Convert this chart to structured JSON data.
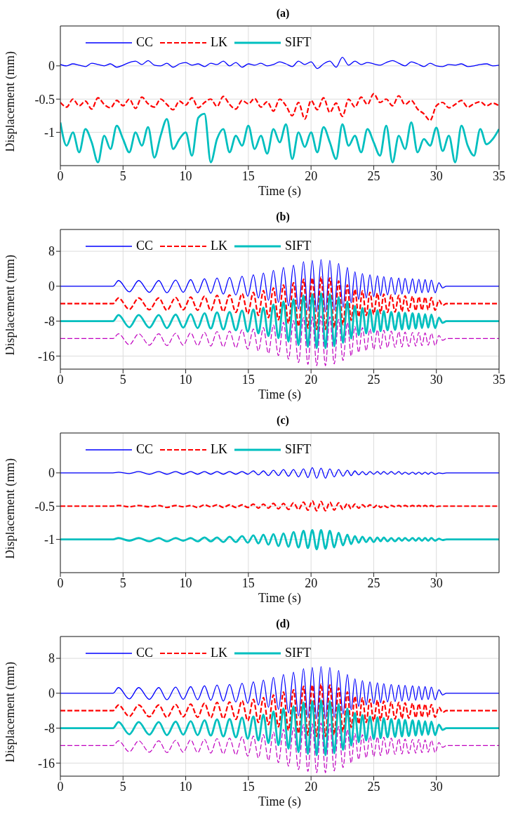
{
  "chart_data": [
    {
      "type": "line",
      "title": "(a)",
      "xlabel": "Time (s)",
      "ylabel": "Displacement (mm)",
      "xlim": [
        0,
        35
      ],
      "xticks": [
        0,
        5,
        10,
        15,
        20,
        25,
        30,
        35
      ],
      "ylim": [
        -1.5,
        0.6
      ],
      "yticks": [
        -1,
        -0.5,
        0
      ],
      "grid": true,
      "legend": "top",
      "x": [
        0,
        0.5,
        1,
        1.5,
        2,
        2.5,
        3,
        3.5,
        4,
        4.5,
        5,
        5.5,
        6,
        6.5,
        7,
        7.5,
        8,
        8.5,
        9,
        9.5,
        10,
        10.5,
        11,
        11.5,
        12,
        12.5,
        13,
        13.5,
        14,
        14.5,
        15,
        15.5,
        16,
        16.5,
        17,
        17.5,
        18,
        18.5,
        19,
        19.5,
        20,
        20.5,
        21,
        21.5,
        22,
        22.5,
        23,
        23.5,
        24,
        24.5,
        25,
        25.5,
        26,
        26.5,
        27,
        27.5,
        28,
        28.5,
        29,
        29.5,
        30,
        30.5,
        31,
        31.5,
        32,
        32.5,
        33,
        33.5,
        34,
        34.5,
        35
      ],
      "series": [
        {
          "name": "CC",
          "color": "#0000ff",
          "line_style": "solid",
          "values": [
            0.02,
            0.0,
            0.03,
            0.01,
            -0.01,
            0.04,
            0.02,
            0.0,
            0.03,
            -0.02,
            0.01,
            0.05,
            0.07,
            0.02,
            0.08,
            0.01,
            0.0,
            0.04,
            -0.02,
            0.03,
            0.05,
            0.01,
            0.03,
            -0.01,
            0.04,
            0.02,
            0.07,
            0.0,
            0.05,
            -0.02,
            0.03,
            0.01,
            0.04,
            0.0,
            0.02,
            0.06,
            0.03,
            -0.01,
            0.07,
            0.02,
            0.06,
            -0.04,
            0.03,
            0.07,
            -0.02,
            0.13,
            0.01,
            0.07,
            0.02,
            0.05,
            0.03,
            0.01,
            0.05,
            0.08,
            0.04,
            0.0,
            0.06,
            0.03,
            -0.01,
            0.04,
            0.0,
            -0.01,
            0.02,
            0.01,
            0.03,
            -0.01,
            0.0,
            0.02,
            0.03,
            0.0,
            0.01
          ]
        },
        {
          "name": "LK",
          "color": "#ff0000",
          "line_style": "dashed",
          "values": [
            -0.55,
            -0.62,
            -0.5,
            -0.6,
            -0.53,
            -0.65,
            -0.48,
            -0.58,
            -0.63,
            -0.52,
            -0.6,
            -0.5,
            -0.64,
            -0.47,
            -0.57,
            -0.62,
            -0.5,
            -0.58,
            -0.66,
            -0.53,
            -0.59,
            -0.48,
            -0.63,
            -0.55,
            -0.5,
            -0.61,
            -0.46,
            -0.58,
            -0.65,
            -0.52,
            -0.57,
            -0.49,
            -0.62,
            -0.54,
            -0.68,
            -0.5,
            -0.6,
            -0.75,
            -0.55,
            -0.8,
            -0.52,
            -0.66,
            -0.48,
            -0.7,
            -0.56,
            -0.76,
            -0.5,
            -0.62,
            -0.47,
            -0.58,
            -0.42,
            -0.55,
            -0.5,
            -0.6,
            -0.45,
            -0.58,
            -0.52,
            -0.65,
            -0.72,
            -0.82,
            -0.6,
            -0.55,
            -0.63,
            -0.58,
            -0.52,
            -0.62,
            -0.57,
            -0.54,
            -0.6,
            -0.56,
            -0.6
          ]
        },
        {
          "name": "SIFT",
          "color": "#00bfbf",
          "line_style": "solid",
          "values": [
            -0.85,
            -1.2,
            -1.0,
            -1.3,
            -0.95,
            -1.15,
            -1.45,
            -1.05,
            -1.25,
            -0.9,
            -1.1,
            -1.3,
            -1.0,
            -1.2,
            -0.92,
            -1.38,
            -1.05,
            -0.8,
            -1.25,
            -1.1,
            -1.0,
            -1.35,
            -0.78,
            -0.72,
            -1.45,
            -1.1,
            -0.95,
            -1.3,
            -1.05,
            -1.2,
            -0.9,
            -1.25,
            -1.05,
            -1.32,
            -0.95,
            -1.15,
            -0.88,
            -1.4,
            -1.0,
            -1.22,
            -1.0,
            -1.3,
            -0.92,
            -1.15,
            -1.4,
            -0.88,
            -1.2,
            -1.05,
            -1.3,
            -0.95,
            -1.15,
            -1.35,
            -0.9,
            -1.45,
            -1.05,
            -1.25,
            -0.85,
            -1.3,
            -1.1,
            -1.2,
            -0.93,
            -1.28,
            -1.05,
            -1.45,
            -0.9,
            -1.2,
            -1.35,
            -0.95,
            -1.18,
            -1.1,
            -0.95
          ]
        }
      ]
    },
    {
      "type": "line",
      "title": "(b)",
      "xlabel": "Time (s)",
      "ylabel": "Displacement (mm)",
      "xlim": [
        0,
        35
      ],
      "xticks": [
        0,
        5,
        10,
        15,
        20,
        25,
        30,
        35
      ],
      "ylim": [
        -19,
        13
      ],
      "yticks": [
        -16,
        -8,
        0,
        8
      ],
      "grid": true,
      "legend": "top",
      "x": [
        0,
        4.2,
        4.64,
        5.5,
        6.25,
        7.1,
        7.85,
        8.5,
        9.2,
        9.8,
        10.4,
        10.95,
        11.5,
        12.0,
        12.5,
        13.0,
        13.5,
        14.0,
        14.5,
        14.95,
        15.4,
        15.8,
        16.2,
        16.6,
        17.0,
        17.4,
        17.8,
        18.2,
        18.6,
        19.0,
        19.4,
        19.75,
        20.1,
        20.45,
        20.8,
        21.15,
        21.5,
        21.85,
        22.2,
        22.55,
        22.9,
        23.2,
        23.5,
        23.8,
        24.1,
        24.4,
        24.7,
        25.0,
        25.3,
        25.55,
        25.8,
        26.1,
        26.4,
        26.7,
        27.0,
        27.25,
        27.5,
        27.8,
        28.1,
        28.35,
        28.6,
        28.85,
        29.1,
        29.35,
        29.6,
        29.9,
        30.2,
        30.5,
        30.8,
        35
      ],
      "series": [
        {
          "name": "CC",
          "color": "#0000ff",
          "line_style": "solid",
          "values": [
            0,
            0,
            1.3,
            -1.3,
            1.3,
            -1.4,
            1.3,
            -1.5,
            1.4,
            -1.4,
            1.5,
            -1.5,
            1.7,
            -1.6,
            1.9,
            -1.8,
            2.0,
            -2.0,
            2.3,
            -2.3,
            2.6,
            -2.7,
            3.0,
            -3.2,
            3.6,
            -3.7,
            4.3,
            -4.5,
            4.8,
            -5.2,
            5.6,
            -5.6,
            5.9,
            -5.9,
            6.1,
            -5.9,
            5.9,
            -5.5,
            5.2,
            -4.8,
            4.3,
            -3.8,
            3.3,
            -3.0,
            2.9,
            -2.7,
            2.6,
            -2.4,
            2.4,
            -2.2,
            2.2,
            -2.0,
            2.0,
            -1.9,
            1.9,
            -1.8,
            1.8,
            -1.7,
            1.7,
            -1.6,
            1.6,
            -1.5,
            1.5,
            -1.4,
            1.4,
            -1.5,
            0.8,
            -0.4,
            0,
            0
          ]
        },
        {
          "name": "LK",
          "color": "#ff0000",
          "line_style": "dashed",
          "values": [
            -4,
            -4,
            -2.7,
            -5.3,
            -2.7,
            -5.4,
            -2.7,
            -5.5,
            -2.6,
            -5.4,
            -2.5,
            -5.5,
            -2.3,
            -5.6,
            -2.1,
            -5.8,
            -2.0,
            -6.0,
            -1.7,
            -6.3,
            -1.4,
            -6.7,
            -1.0,
            -7.2,
            -0.4,
            -7.7,
            0.3,
            -8.5,
            0.8,
            -9.2,
            1.6,
            -9.6,
            1.9,
            -9.9,
            2.1,
            -9.9,
            1.9,
            -9.5,
            1.2,
            -8.8,
            0.3,
            -7.8,
            -0.7,
            -7.0,
            -1.1,
            -6.7,
            -1.4,
            -6.4,
            -1.6,
            -6.2,
            -1.8,
            -6.0,
            -2.0,
            -5.9,
            -2.1,
            -5.8,
            -2.2,
            -5.7,
            -2.3,
            -5.6,
            -2.4,
            -5.5,
            -2.5,
            -5.4,
            -2.6,
            -5.5,
            -3.2,
            -4.4,
            -4,
            -4
          ]
        },
        {
          "name": "SIFT",
          "color": "#00bfbf",
          "line_style": "solid",
          "values": [
            -8,
            -8,
            -6.6,
            -9.4,
            -6.6,
            -9.5,
            -6.6,
            -9.6,
            -6.5,
            -9.5,
            -6.4,
            -9.6,
            -6.2,
            -9.7,
            -6.0,
            -9.9,
            -5.9,
            -10.1,
            -5.6,
            -10.4,
            -5.3,
            -10.8,
            -4.9,
            -11.4,
            -4.2,
            -11.9,
            -3.5,
            -12.7,
            -3.0,
            -13.5,
            -2.1,
            -13.9,
            -1.8,
            -14.2,
            -1.6,
            -14.2,
            -1.8,
            -13.8,
            -2.5,
            -13.0,
            -3.5,
            -12.0,
            -4.5,
            -11.2,
            -5.0,
            -10.8,
            -5.3,
            -10.5,
            -5.5,
            -10.3,
            -5.7,
            -10.1,
            -5.9,
            -10.0,
            -6.0,
            -9.9,
            -6.1,
            -9.8,
            -6.2,
            -9.7,
            -6.3,
            -9.6,
            -6.4,
            -9.5,
            -6.5,
            -9.6,
            -7.2,
            -8.4,
            -8,
            -8
          ]
        },
        {
          "color": "#bf00bf",
          "line_style": "dashed",
          "values": [
            -12,
            -12,
            -10.9,
            -13.4,
            -10.9,
            -13.5,
            -10.9,
            -13.6,
            -10.8,
            -13.5,
            -10.7,
            -13.6,
            -10.6,
            -13.7,
            -10.4,
            -13.9,
            -10.3,
            -14.1,
            -10.0,
            -14.4,
            -9.8,
            -14.8,
            -9.5,
            -15.4,
            -8.9,
            -15.9,
            -8.3,
            -16.7,
            -7.9,
            -17.5,
            -7.2,
            -17.9,
            -7.0,
            -18.2,
            -6.8,
            -18.2,
            -7.0,
            -17.8,
            -7.6,
            -17.0,
            -8.3,
            -16.0,
            -9.2,
            -15.2,
            -9.5,
            -14.8,
            -9.8,
            -14.5,
            -10.0,
            -14.3,
            -10.1,
            -14.1,
            -10.3,
            -14.0,
            -10.4,
            -13.9,
            -10.5,
            -13.8,
            -10.6,
            -13.7,
            -10.6,
            -13.6,
            -10.7,
            -13.5,
            -10.8,
            -13.6,
            -11.3,
            -12.4,
            -12,
            -12
          ]
        }
      ]
    },
    {
      "type": "line",
      "title": "(c)",
      "xlabel": "Time (s)",
      "ylabel": "Displacement (mm)",
      "xlim": [
        0,
        35
      ],
      "xticks": [
        0,
        5,
        10,
        15,
        20,
        25,
        30
      ],
      "ylim": [
        -1.5,
        0.6
      ],
      "yticks": [
        -1,
        -0.5,
        0
      ],
      "grid": true,
      "legend": "top",
      "x": [
        0,
        4.2,
        4.64,
        5.5,
        6.25,
        7.1,
        7.85,
        8.5,
        9.2,
        9.8,
        10.4,
        10.95,
        11.5,
        12.0,
        12.5,
        13.0,
        13.5,
        14.0,
        14.5,
        14.95,
        15.4,
        15.8,
        16.2,
        16.6,
        17.0,
        17.4,
        17.8,
        18.2,
        18.6,
        19.0,
        19.4,
        19.75,
        20.1,
        20.45,
        20.8,
        21.15,
        21.5,
        21.85,
        22.2,
        22.55,
        22.9,
        23.2,
        23.5,
        23.8,
        24.1,
        24.4,
        24.7,
        25.0,
        25.3,
        25.55,
        25.8,
        26.1,
        26.4,
        26.7,
        27.0,
        27.25,
        27.5,
        27.8,
        28.1,
        28.35,
        28.6,
        28.85,
        29.1,
        29.35,
        29.6,
        29.9,
        30.2,
        30.5,
        30.8,
        35
      ],
      "series": [
        {
          "name": "CC",
          "color": "#0000ff",
          "line_style": "solid",
          "values": [
            0,
            0,
            0.01,
            -0.01,
            0.02,
            -0.02,
            0.02,
            -0.02,
            0.02,
            -0.02,
            0.02,
            -0.02,
            0.02,
            -0.02,
            0.02,
            -0.02,
            0.02,
            -0.02,
            0.02,
            -0.02,
            0.03,
            -0.03,
            0.03,
            -0.04,
            0.04,
            -0.04,
            0.05,
            -0.05,
            0.05,
            -0.06,
            0.06,
            -0.07,
            0.08,
            -0.08,
            0.07,
            -0.08,
            0.06,
            -0.06,
            0.05,
            -0.05,
            0.04,
            -0.04,
            0.03,
            -0.03,
            0.02,
            -0.03,
            0.02,
            -0.02,
            0.02,
            -0.02,
            0.02,
            -0.02,
            0.02,
            -0.02,
            0.02,
            -0.02,
            0.01,
            -0.02,
            0.01,
            -0.02,
            0.01,
            -0.02,
            0.01,
            -0.02,
            0.01,
            -0.02,
            0.0,
            -0.01,
            0,
            0
          ]
        },
        {
          "name": "LK",
          "color": "#ff0000",
          "line_style": "dashed",
          "values": [
            -0.5,
            -0.5,
            -0.49,
            -0.51,
            -0.49,
            -0.51,
            -0.49,
            -0.52,
            -0.49,
            -0.51,
            -0.49,
            -0.52,
            -0.48,
            -0.51,
            -0.48,
            -0.52,
            -0.48,
            -0.52,
            -0.48,
            -0.52,
            -0.47,
            -0.53,
            -0.47,
            -0.53,
            -0.46,
            -0.54,
            -0.46,
            -0.55,
            -0.45,
            -0.55,
            -0.44,
            -0.56,
            -0.42,
            -0.57,
            -0.43,
            -0.57,
            -0.44,
            -0.56,
            -0.45,
            -0.55,
            -0.46,
            -0.54,
            -0.47,
            -0.53,
            -0.48,
            -0.52,
            -0.48,
            -0.52,
            -0.48,
            -0.52,
            -0.49,
            -0.52,
            -0.49,
            -0.51,
            -0.49,
            -0.51,
            -0.49,
            -0.51,
            -0.49,
            -0.51,
            -0.49,
            -0.51,
            -0.49,
            -0.51,
            -0.49,
            -0.51,
            -0.5,
            -0.5,
            -0.5,
            -0.5
          ]
        },
        {
          "name": "SIFT",
          "color": "#00bfbf",
          "line_style": "solid",
          "values": [
            -1,
            -1,
            -0.98,
            -1.02,
            -0.98,
            -1.03,
            -0.98,
            -1.03,
            -0.98,
            -1.02,
            -0.98,
            -1.03,
            -0.97,
            -1.03,
            -0.97,
            -1.04,
            -0.96,
            -1.04,
            -0.95,
            -1.05,
            -0.94,
            -1.06,
            -0.93,
            -1.08,
            -0.92,
            -1.1,
            -0.91,
            -1.11,
            -0.89,
            -1.12,
            -0.87,
            -1.13,
            -0.86,
            -1.15,
            -0.86,
            -1.14,
            -0.87,
            -1.12,
            -0.9,
            -1.09,
            -0.93,
            -1.07,
            -0.95,
            -1.05,
            -0.96,
            -1.04,
            -0.97,
            -1.04,
            -0.97,
            -1.03,
            -0.97,
            -1.03,
            -0.98,
            -1.03,
            -0.98,
            -1.02,
            -0.98,
            -1.02,
            -0.98,
            -1.02,
            -0.98,
            -1.02,
            -0.98,
            -1.02,
            -0.98,
            -1.02,
            -0.99,
            -1.01,
            -1,
            -1
          ]
        }
      ]
    },
    {
      "type": "line",
      "title": "(d)",
      "xlabel": "Time (s)",
      "ylabel": "Displacement (mm)",
      "xlim": [
        0,
        35
      ],
      "xticks": [
        0,
        5,
        10,
        15,
        20,
        25,
        30
      ],
      "ylim": [
        -19,
        13
      ],
      "yticks": [
        -16,
        -8,
        0,
        8
      ],
      "grid": true,
      "legend": "top",
      "x": [
        0,
        4.2,
        4.64,
        5.5,
        6.25,
        7.1,
        7.85,
        8.5,
        9.2,
        9.8,
        10.4,
        10.95,
        11.5,
        12.0,
        12.5,
        13.0,
        13.5,
        14.0,
        14.5,
        14.95,
        15.4,
        15.8,
        16.2,
        16.6,
        17.0,
        17.4,
        17.8,
        18.2,
        18.6,
        19.0,
        19.4,
        19.75,
        20.1,
        20.45,
        20.8,
        21.15,
        21.5,
        21.85,
        22.2,
        22.55,
        22.9,
        23.2,
        23.5,
        23.8,
        24.1,
        24.4,
        24.7,
        25.0,
        25.3,
        25.55,
        25.8,
        26.1,
        26.4,
        26.7,
        27.0,
        27.25,
        27.5,
        27.8,
        28.1,
        28.35,
        28.6,
        28.85,
        29.1,
        29.35,
        29.6,
        29.9,
        30.2,
        30.5,
        30.8,
        35
      ],
      "series": [
        {
          "name": "CC",
          "color": "#0000ff",
          "line_style": "solid",
          "values": [
            0,
            0,
            1.3,
            -1.3,
            1.3,
            -1.4,
            1.3,
            -1.5,
            1.4,
            -1.4,
            1.5,
            -1.5,
            1.7,
            -1.6,
            1.9,
            -1.8,
            2.0,
            -2.0,
            2.3,
            -2.3,
            2.6,
            -2.7,
            3.0,
            -3.2,
            3.6,
            -3.7,
            4.3,
            -4.5,
            4.8,
            -5.2,
            5.6,
            -5.6,
            5.9,
            -5.9,
            6.1,
            -5.9,
            5.9,
            -5.5,
            5.2,
            -4.8,
            4.3,
            -3.8,
            3.3,
            -3.0,
            2.9,
            -2.7,
            2.6,
            -2.4,
            2.4,
            -2.2,
            2.2,
            -2.0,
            2.0,
            -1.9,
            1.9,
            -1.8,
            1.8,
            -1.7,
            1.7,
            -1.6,
            1.6,
            -1.5,
            1.5,
            -1.4,
            1.4,
            -1.5,
            0.8,
            -0.4,
            0,
            0
          ]
        },
        {
          "name": "LK",
          "color": "#ff0000",
          "line_style": "dashed",
          "values": [
            -4,
            -4,
            -2.7,
            -5.3,
            -2.7,
            -5.4,
            -2.7,
            -5.5,
            -2.6,
            -5.4,
            -2.5,
            -5.5,
            -2.3,
            -5.6,
            -2.1,
            -5.8,
            -2.0,
            -6.0,
            -1.7,
            -6.3,
            -1.4,
            -6.7,
            -1.0,
            -7.2,
            -0.4,
            -7.7,
            0.3,
            -8.5,
            0.8,
            -9.2,
            1.6,
            -9.6,
            1.9,
            -9.9,
            2.1,
            -9.9,
            1.9,
            -9.5,
            1.2,
            -8.8,
            0.3,
            -7.8,
            -0.7,
            -7.0,
            -1.1,
            -6.7,
            -1.4,
            -6.4,
            -1.6,
            -6.2,
            -1.8,
            -6.0,
            -2.0,
            -5.9,
            -2.1,
            -5.8,
            -2.2,
            -5.7,
            -2.3,
            -5.6,
            -2.4,
            -5.5,
            -2.5,
            -5.4,
            -2.6,
            -5.5,
            -3.2,
            -4.4,
            -4,
            -4
          ]
        },
        {
          "name": "SIFT",
          "color": "#00bfbf",
          "line_style": "solid",
          "values": [
            -8,
            -8,
            -6.6,
            -9.4,
            -6.6,
            -9.5,
            -6.6,
            -9.6,
            -6.5,
            -9.5,
            -6.4,
            -9.6,
            -6.2,
            -9.7,
            -6.0,
            -9.9,
            -5.9,
            -10.1,
            -5.6,
            -10.4,
            -5.3,
            -10.8,
            -4.9,
            -11.4,
            -4.2,
            -11.9,
            -3.5,
            -12.7,
            -3.0,
            -13.5,
            -2.1,
            -13.9,
            -1.8,
            -14.2,
            -1.6,
            -14.2,
            -1.8,
            -13.8,
            -2.5,
            -13.0,
            -3.5,
            -12.0,
            -4.5,
            -11.2,
            -5.0,
            -10.8,
            -5.3,
            -10.5,
            -5.5,
            -10.3,
            -5.7,
            -10.1,
            -5.9,
            -10.0,
            -6.0,
            -9.9,
            -6.1,
            -9.8,
            -6.2,
            -9.7,
            -6.3,
            -9.6,
            -6.4,
            -9.5,
            -6.5,
            -9.6,
            -7.2,
            -8.4,
            -8,
            -8
          ]
        },
        {
          "color": "#bf00bf",
          "line_style": "dashed",
          "values": [
            -12,
            -12,
            -10.9,
            -13.4,
            -10.9,
            -13.5,
            -10.9,
            -13.6,
            -10.8,
            -13.5,
            -10.7,
            -13.6,
            -10.6,
            -13.7,
            -10.4,
            -13.9,
            -10.3,
            -14.1,
            -10.0,
            -14.4,
            -9.8,
            -14.8,
            -9.5,
            -15.4,
            -8.9,
            -15.9,
            -8.3,
            -16.7,
            -7.9,
            -17.5,
            -7.2,
            -17.9,
            -7.0,
            -18.2,
            -6.8,
            -18.2,
            -7.0,
            -17.8,
            -7.6,
            -17.0,
            -8.3,
            -16.0,
            -9.2,
            -15.2,
            -9.5,
            -14.8,
            -9.8,
            -14.5,
            -10.0,
            -14.3,
            -10.1,
            -14.1,
            -10.3,
            -14.0,
            -10.4,
            -13.9,
            -10.5,
            -13.8,
            -10.6,
            -13.7,
            -10.6,
            -13.6,
            -10.7,
            -13.5,
            -10.8,
            -13.6,
            -11.3,
            -12.4,
            -12,
            -12
          ]
        }
      ]
    }
  ]
}
